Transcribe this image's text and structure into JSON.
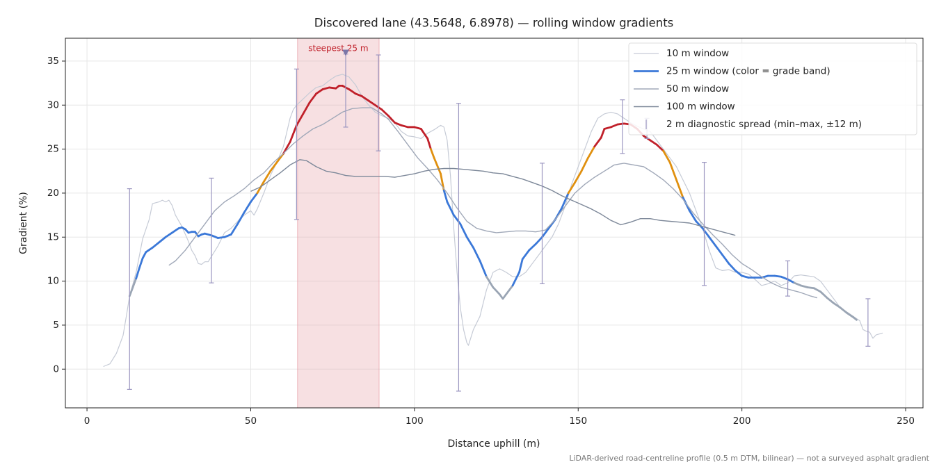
{
  "chart_data": {
    "type": "line",
    "title": "Discovered lane (43.5648, 6.8978) — rolling window gradients",
    "xlabel": "Distance uphill (m)",
    "ylabel": "Gradient (%)",
    "footnote": "LiDAR-derived road-centreline profile (0.5 m DTM, bilinear) — not a surveyed asphalt gradient",
    "xlim": [
      -6.6,
      255.3
    ],
    "ylim": [
      -4.4,
      37.6
    ],
    "xticks": [
      0,
      50,
      100,
      150,
      200,
      250
    ],
    "yticks": [
      0,
      5,
      10,
      15,
      20,
      25,
      30,
      35
    ],
    "grid": true,
    "legend": "upper right",
    "highlight": {
      "label": "steepest 25 m",
      "x_start": 64.3,
      "x_end": 89.2,
      "color": "#e8a5ac",
      "marker_x": 79,
      "marker_y": 35.9,
      "marker_color": "#7b76a8"
    },
    "series": [
      {
        "name": "10 m window",
        "color": "#c6cbd6",
        "width": 1.2,
        "x": [
          5,
          7,
          9,
          11,
          12,
          13,
          15,
          17,
          19,
          20,
          22,
          23,
          24,
          25,
          26,
          27,
          29,
          31,
          32,
          33,
          34,
          35,
          36,
          37,
          38,
          40,
          42,
          44,
          46,
          48,
          50,
          51,
          52,
          54,
          56,
          58,
          60,
          62,
          63,
          64,
          66,
          68,
          70,
          72,
          74,
          76,
          78,
          80,
          82,
          84,
          86,
          88,
          90,
          92,
          94,
          96,
          98,
          100,
          102,
          104,
          106,
          108,
          109,
          110,
          111,
          112,
          113,
          114,
          115,
          116,
          116.5,
          118,
          120,
          122,
          124,
          126,
          128,
          130,
          132,
          134,
          136,
          138,
          140,
          142,
          144,
          146,
          148,
          150,
          152,
          154,
          156,
          158,
          160,
          162,
          164,
          166,
          168,
          170,
          172,
          174,
          176,
          178,
          180,
          182,
          184,
          186,
          188,
          190,
          192,
          194,
          196,
          198,
          200,
          202,
          204,
          206,
          208,
          210,
          212,
          214,
          216,
          218,
          220,
          222,
          224,
          226,
          228,
          230,
          232,
          234,
          236,
          237,
          238,
          239,
          240,
          241,
          243
        ],
        "values": [
          0.3,
          0.6,
          1.8,
          3.8,
          6,
          8.3,
          11,
          14.8,
          17,
          18.8,
          19,
          19.2,
          19,
          19.2,
          18.6,
          17.5,
          16.2,
          14.5,
          13.5,
          12.9,
          12,
          11.9,
          12.2,
          12.2,
          12.8,
          14,
          15.5,
          16,
          16.8,
          17.5,
          18,
          17.5,
          18.2,
          20,
          22,
          23.5,
          25.3,
          28.5,
          29.5,
          30,
          30.7,
          31.4,
          32,
          32.2,
          32.8,
          33.3,
          33.5,
          33.2,
          32.3,
          31,
          30,
          29.2,
          28.8,
          28.5,
          28,
          27,
          26.5,
          26.4,
          26.2,
          26.8,
          27.2,
          27.7,
          27.5,
          26,
          22,
          16,
          11,
          7,
          4.5,
          3,
          2.7,
          4.5,
          6,
          9,
          11,
          11.4,
          11,
          10.5,
          10.5,
          11,
          12,
          13,
          14,
          15,
          16.5,
          18.5,
          21,
          23,
          25,
          27,
          28.5,
          29,
          29.2,
          29,
          28.5,
          28,
          27.6,
          27.3,
          27,
          26,
          25,
          24,
          23,
          21.5,
          20,
          18,
          16,
          13.5,
          11.5,
          11.2,
          11.3,
          11,
          11,
          10.8,
          10.2,
          9.5,
          9.7,
          10,
          9.5,
          9.8,
          10.6,
          10.7,
          10.6,
          10.5,
          10,
          9,
          8,
          7,
          6.5,
          6,
          5.5,
          4.5,
          4.3,
          4.2,
          3.5,
          3.9,
          4.1
        ]
      },
      {
        "name": "25 m window (color = grade band)",
        "color": "#3b78d8",
        "width": 2.8,
        "band_edges": [
          10,
          20,
          25
        ],
        "band_colors": [
          "#9aa5b4",
          "#3b78d8",
          "#e0900f",
          "#c0202a"
        ],
        "x": [
          13,
          14,
          15,
          16,
          17,
          18,
          20,
          22,
          24,
          26,
          28,
          29,
          30,
          31,
          32,
          33,
          34,
          35,
          36,
          38,
          40,
          42,
          44,
          46,
          48,
          50,
          52,
          54,
          56,
          58,
          60,
          62,
          64,
          66,
          68,
          70,
          72,
          74,
          76,
          77,
          78,
          80,
          82,
          84,
          86,
          88,
          90,
          92,
          94,
          96,
          98,
          100,
          102,
          104,
          105,
          106,
          108,
          109,
          110,
          112,
          114,
          116,
          118,
          120,
          122,
          124,
          126,
          127,
          128,
          130,
          132,
          133,
          135,
          137,
          139,
          141,
          143,
          145,
          147,
          149,
          151,
          153,
          155,
          157,
          158,
          160,
          162,
          164,
          166,
          168,
          170,
          172,
          174,
          176,
          178,
          180,
          182,
          184,
          186,
          188,
          190,
          192,
          194,
          196,
          198,
          200,
          202,
          204,
          206,
          208,
          210,
          212,
          214,
          216,
          218,
          220,
          222,
          224,
          226,
          228,
          230,
          232,
          234,
          235
        ],
        "values": [
          8.3,
          9.3,
          10.3,
          11.5,
          12.6,
          13.3,
          13.8,
          14.4,
          15,
          15.5,
          16,
          16.1,
          15.9,
          15.5,
          15.6,
          15.6,
          15.1,
          15.3,
          15.4,
          15.2,
          14.9,
          15,
          15.3,
          16.5,
          17.8,
          19,
          20,
          21.3,
          22.5,
          23.5,
          24.5,
          25.8,
          27.7,
          29,
          30.3,
          31.3,
          31.8,
          32,
          31.9,
          32.2,
          32.2,
          31.8,
          31.3,
          31,
          30.5,
          30,
          29.5,
          28.8,
          28,
          27.7,
          27.5,
          27.5,
          27.3,
          26.2,
          25,
          24,
          22.2,
          20.3,
          19,
          17.5,
          16.5,
          15,
          13.8,
          12.3,
          10.5,
          9.3,
          8.5,
          8,
          8.5,
          9.5,
          11,
          12.5,
          13.5,
          14.2,
          15,
          16,
          17,
          18.3,
          20,
          21.2,
          22.5,
          24,
          25.3,
          26.3,
          27.3,
          27.5,
          27.8,
          27.9,
          27.8,
          27.3,
          26.5,
          26,
          25.5,
          24.8,
          23.5,
          21.5,
          19.5,
          18,
          16.8,
          16,
          15,
          14,
          13,
          12,
          11.2,
          10.6,
          10.4,
          10.4,
          10.4,
          10.6,
          10.6,
          10.5,
          10.2,
          9.8,
          9.5,
          9.3,
          9.2,
          8.8,
          8.1,
          7.5,
          7,
          6.4,
          5.9,
          5.6
        ]
      },
      {
        "name": "50 m window",
        "color": "#a0a8b8",
        "width": 1.4,
        "x": [
          25,
          27,
          30,
          33,
          36,
          39,
          42,
          45,
          48,
          51,
          54,
          57,
          60,
          63,
          66,
          69,
          72,
          75,
          78,
          81,
          84,
          87,
          90,
          92,
          95,
          98,
          101,
          104,
          107,
          110,
          113,
          116,
          119,
          122,
          125,
          128,
          131,
          134,
          137,
          140,
          143,
          146,
          149,
          152,
          155,
          158,
          161,
          164,
          167,
          170,
          173,
          176,
          179,
          182,
          185,
          188,
          191,
          194,
          197,
          200,
          203,
          206,
          209,
          212,
          215,
          218,
          221,
          223
        ],
        "values": [
          11.8,
          12.3,
          13.5,
          15,
          16.5,
          18,
          19,
          19.7,
          20.5,
          21.5,
          22.3,
          23.5,
          24.5,
          25.6,
          26.5,
          27.3,
          27.8,
          28.5,
          29.2,
          29.6,
          29.7,
          29.7,
          29,
          28.4,
          27,
          25.5,
          24,
          22.8,
          21.5,
          20,
          18.3,
          16.8,
          16,
          15.7,
          15.5,
          15.6,
          15.7,
          15.7,
          15.6,
          15.8,
          17,
          18.5,
          20,
          21,
          21.8,
          22.5,
          23.2,
          23.4,
          23.2,
          23,
          22.3,
          21.5,
          20.5,
          19.3,
          17.8,
          16.5,
          15.3,
          14.2,
          13,
          12,
          11.3,
          10.5,
          9.8,
          9.3,
          9,
          8.7,
          8.3,
          8.1
        ]
      },
      {
        "name": "100 m window",
        "color": "#7d8899",
        "width": 1.4,
        "x": [
          50,
          53,
          56,
          59,
          62,
          65,
          67,
          70,
          73,
          76,
          79,
          82,
          85,
          88,
          91,
          94,
          97,
          100,
          103,
          106,
          109,
          112,
          115,
          118,
          121,
          124,
          127,
          130,
          133,
          136,
          139,
          142,
          145,
          148,
          151,
          154,
          157,
          160,
          163,
          166,
          169,
          172,
          175,
          178,
          181,
          184,
          187,
          190,
          193,
          196,
          198
        ],
        "values": [
          20.2,
          20.7,
          21.5,
          22.3,
          23.2,
          23.8,
          23.7,
          23,
          22.5,
          22.3,
          22,
          21.9,
          21.9,
          21.9,
          21.9,
          21.8,
          22,
          22.2,
          22.5,
          22.7,
          22.8,
          22.8,
          22.7,
          22.6,
          22.5,
          22.3,
          22.2,
          21.9,
          21.6,
          21.2,
          20.8,
          20.3,
          19.7,
          19.2,
          18.7,
          18.2,
          17.6,
          16.9,
          16.4,
          16.7,
          17.1,
          17.1,
          16.9,
          16.8,
          16.7,
          16.6,
          16.3,
          16,
          15.7,
          15.4,
          15.2
        ]
      }
    ],
    "spread": {
      "name": "2 m diagnostic spread (min–max, ±12 m)",
      "color": "#9b96c0",
      "x": [
        13,
        38,
        64,
        79,
        89,
        113.5,
        139,
        163.5,
        171,
        188.5,
        214,
        238.5
      ],
      "low": [
        -2.3,
        9.8,
        17,
        27.5,
        24.8,
        -2.5,
        9.7,
        24.5,
        26.2,
        9.5,
        8.3,
        2.6
      ],
      "high": [
        20.5,
        21.7,
        34.1,
        35.8,
        35.7,
        30.2,
        23.4,
        30.6,
        28.5,
        23.5,
        12.3,
        8.0
      ]
    }
  }
}
